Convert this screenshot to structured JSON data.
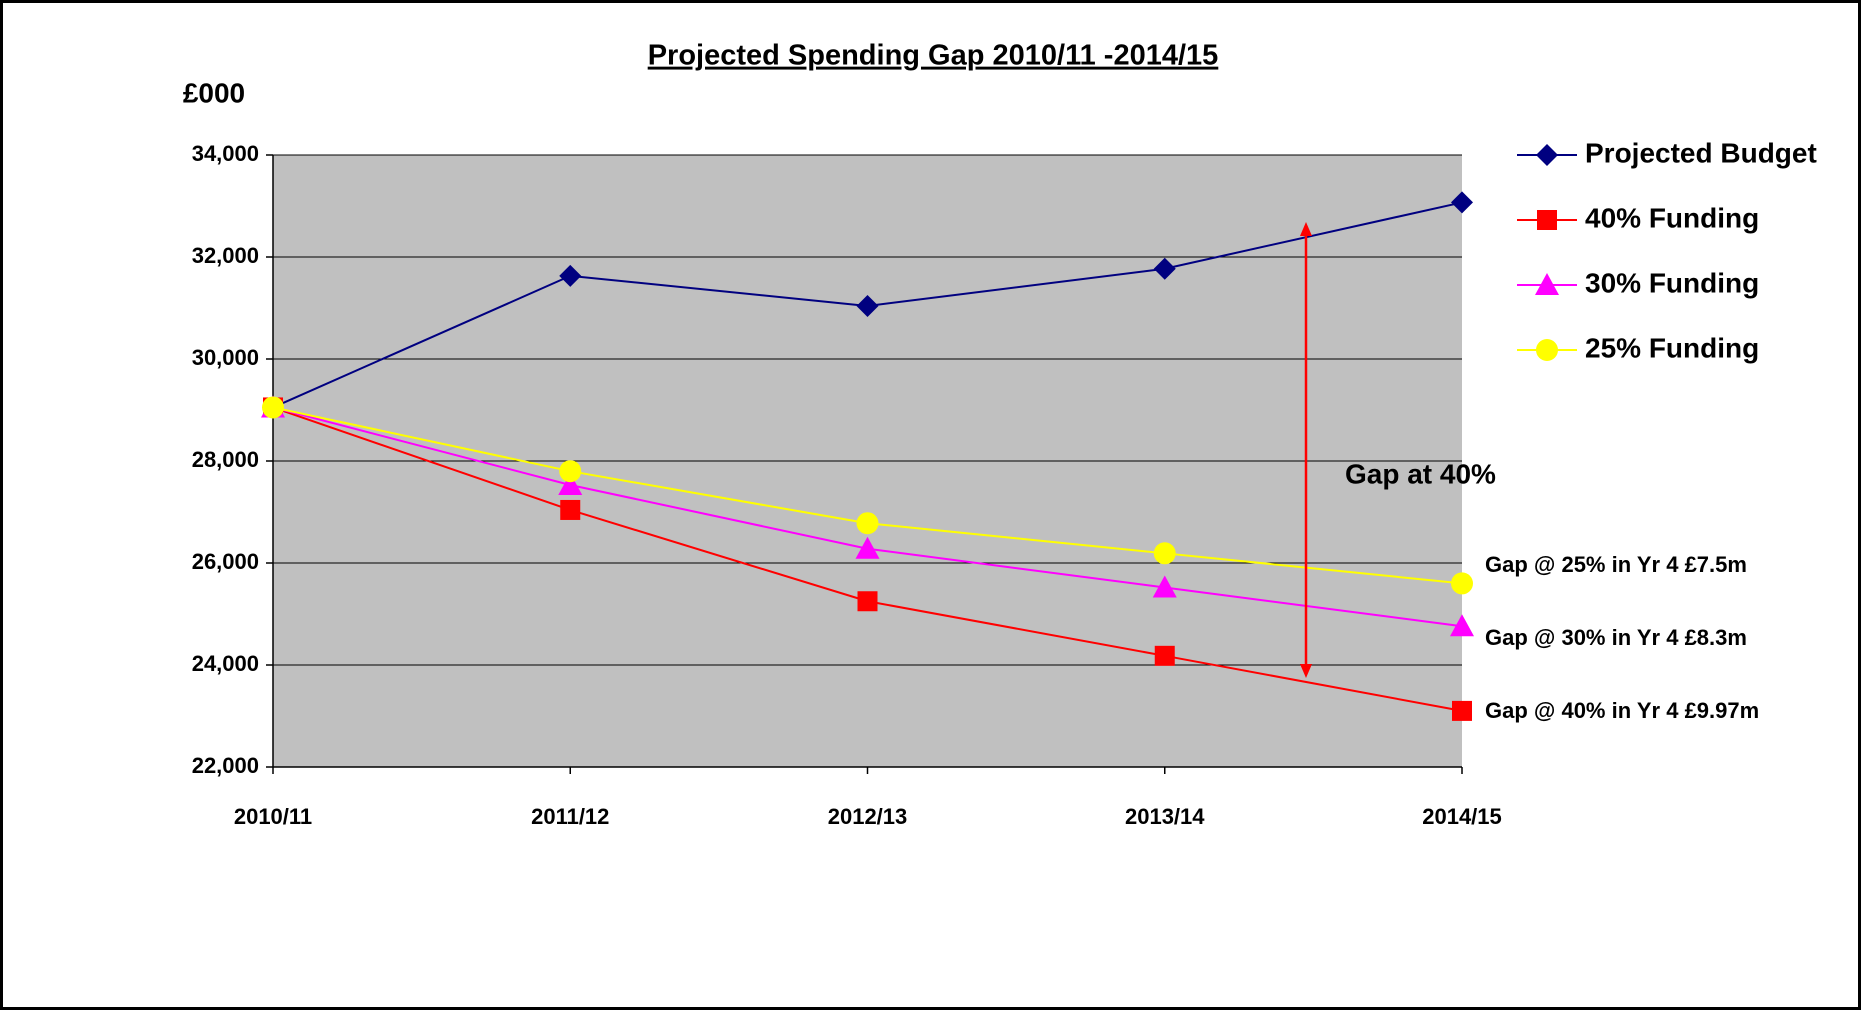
{
  "chart_data": {
    "type": "line",
    "title": "Projected Spending Gap 2010/11 -2014/15",
    "y_axis_label": "£000",
    "categories": [
      "2010/11",
      "2011/12",
      "2012/13",
      "2013/14",
      "2014/15"
    ],
    "series": [
      {
        "name": "Projected Budget",
        "color": "#000080",
        "marker": "diamond",
        "values": [
          29050,
          31630,
          31040,
          31770,
          33070
        ]
      },
      {
        "name": "40% Funding",
        "color": "#ff0000",
        "marker": "square",
        "values": [
          29050,
          27040,
          25250,
          24180,
          23100
        ]
      },
      {
        "name": "30% Funding",
        "color": "#ff00ff",
        "marker": "triangle",
        "values": [
          29050,
          27530,
          26280,
          25520,
          24760
        ]
      },
      {
        "name": "25% Funding",
        "color": "#ffff00",
        "marker": "circle",
        "values": [
          29050,
          27800,
          26780,
          26190,
          25600
        ]
      }
    ],
    "ylim": [
      22000,
      34000
    ],
    "yticks": [
      {
        "value": 22000,
        "label": "22,000"
      },
      {
        "value": 24000,
        "label": "24,000"
      },
      {
        "value": 26000,
        "label": "26,000"
      },
      {
        "value": 28000,
        "label": "28,000"
      },
      {
        "value": 30000,
        "label": "30,000"
      },
      {
        "value": 32000,
        "label": "32,000"
      },
      {
        "value": 34000,
        "label": "34,000"
      }
    ],
    "grid": true,
    "legend": "right",
    "annotations": [
      "Gap at 40%",
      "Gap @ 25% in Yr 4 £7.5m",
      "Gap @ 30% in Yr 4 £8.3m",
      "Gap @ 40% in Yr 4 £9.97m"
    ]
  }
}
